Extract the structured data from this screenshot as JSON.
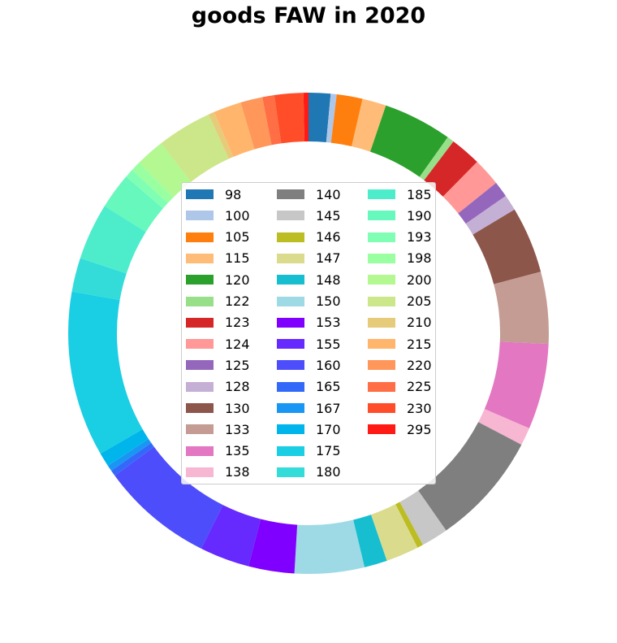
{
  "chart_data": {
    "type": "pie",
    "title": "goods FAW in 2020",
    "categories": [
      "98",
      "100",
      "105",
      "115",
      "120",
      "122",
      "123",
      "124",
      "125",
      "128",
      "130",
      "133",
      "135",
      "138",
      "140",
      "145",
      "146",
      "147",
      "148",
      "150",
      "153",
      "155",
      "160",
      "165",
      "167",
      "170",
      "175",
      "180",
      "185",
      "190",
      "193",
      "198",
      "200",
      "205",
      "210",
      "215",
      "220",
      "225",
      "230",
      "295"
    ],
    "values": [
      2.2,
      0.6,
      2.6,
      2.4,
      6.9,
      0.7,
      3.1,
      2.8,
      1.6,
      1.6,
      6.7,
      7.2,
      8.6,
      1.8,
      11.4,
      2.7,
      0.6,
      3.3,
      2.3,
      7.0,
      4.6,
      5.0,
      11.3,
      0.6,
      0.6,
      1.4,
      16.6,
      3.4,
      5.7,
      3.6,
      0.9,
      1.0,
      2.9,
      5.5,
      0.6,
      2.8,
      2.2,
      1.2,
      2.9,
      0.5
    ],
    "colors": [
      "#1f77b4",
      "#aec7e8",
      "#ff7f0e",
      "#ffbb78",
      "#2ca02c",
      "#98df8a",
      "#d62728",
      "#ff9896",
      "#9467bd",
      "#c5b0d5",
      "#8c564b",
      "#c49c94",
      "#e377c2",
      "#f7b6d2",
      "#7f7f7f",
      "#c7c7c7",
      "#bcbd22",
      "#dbdb8d",
      "#17becf",
      "#9edae5",
      "#8000ff",
      "#6629fe",
      "#4d4dfc",
      "#3369f9",
      "#1996f3",
      "#00b5eb",
      "#1acee3",
      "#33dcd8",
      "#4ded cc",
      "#66f8bd",
      "#80ffb4",
      "#99ffa0",
      "#b3f891",
      "#cce68a",
      "#e6cc7a",
      "#ffb56b",
      "#ff965a",
      "#ff6e45",
      "#ff4d2a",
      "#ff1a15"
    ],
    "donut": true,
    "legend": "center",
    "legend_columns": 3
  }
}
